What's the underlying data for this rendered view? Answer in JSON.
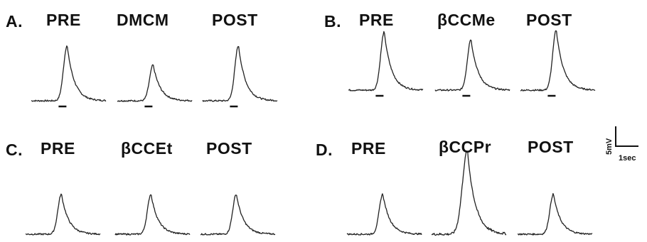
{
  "panels": [
    {
      "id": "A",
      "letter": "A.",
      "labels": [
        "PRE",
        "DMCM",
        "POST"
      ],
      "amplitudes": [
        0.66,
        0.43,
        0.66
      ],
      "stim_bars": [
        true,
        true,
        true
      ]
    },
    {
      "id": "B",
      "letter": "B.",
      "labels": [
        "PRE",
        "βCCMe",
        "POST"
      ],
      "amplitudes": [
        0.82,
        0.72,
        0.85
      ],
      "stim_bars": [
        true,
        true,
        true
      ]
    },
    {
      "id": "C",
      "letter": "C.",
      "labels": [
        "PRE",
        "βCCEt",
        "POST"
      ],
      "amplitudes": [
        0.48,
        0.48,
        0.48
      ],
      "stim_bars": [
        false,
        false,
        false
      ]
    },
    {
      "id": "D",
      "letter": "D.",
      "labels": [
        "PRE",
        "βCCPr",
        "POST"
      ],
      "amplitudes": [
        0.48,
        1.0,
        0.48
      ],
      "stim_bars": [
        false,
        false,
        false
      ]
    }
  ],
  "scale_bar": {
    "voltage_label": "5mV",
    "time_label": "1sec"
  }
}
